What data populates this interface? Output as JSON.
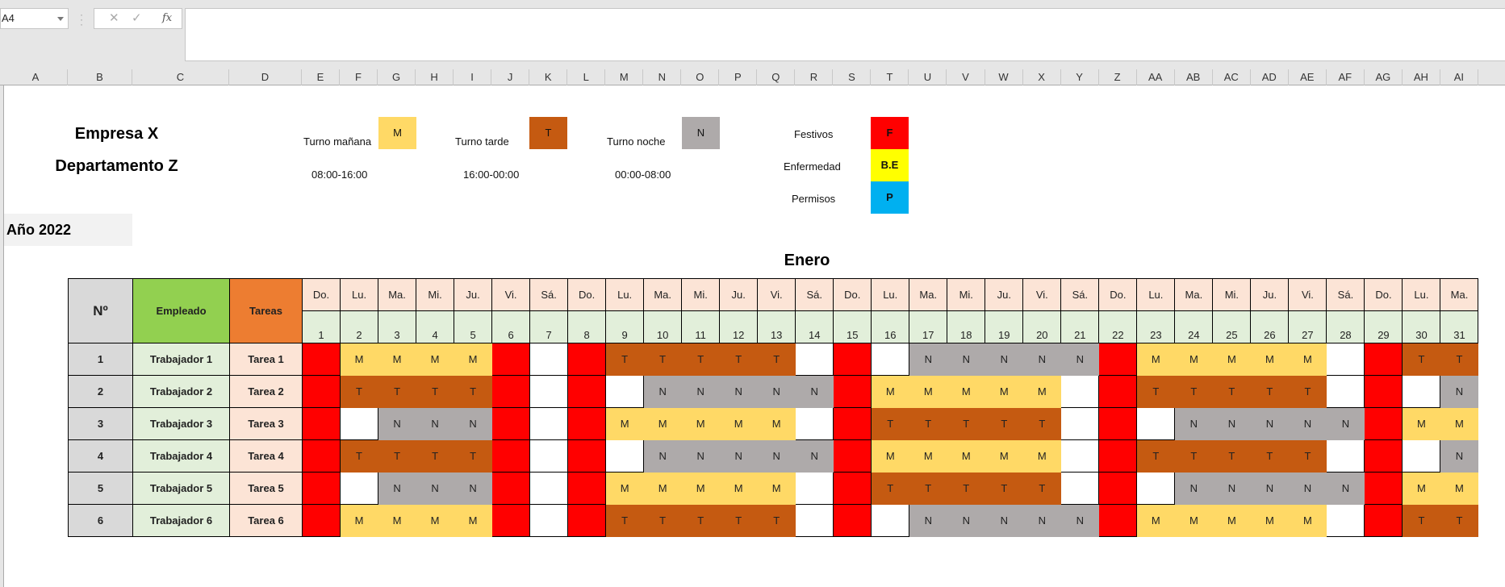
{
  "toolbar": {
    "name_box": "A4",
    "cancel_icon": "✕",
    "enter_icon": "✓",
    "fx_label": "fx",
    "formula_value": ""
  },
  "columns": [
    "A",
    "B",
    "C",
    "D",
    "E",
    "F",
    "G",
    "H",
    "I",
    "J",
    "K",
    "L",
    "M",
    "N",
    "O",
    "P",
    "Q",
    "R",
    "S",
    "T",
    "U",
    "V",
    "W",
    "X",
    "Y",
    "Z",
    "AA",
    "AB",
    "AC",
    "AD",
    "AE",
    "AF",
    "AG",
    "AH",
    "AI"
  ],
  "header": {
    "company": "Empresa X",
    "department": "Departamento Z",
    "year": "Año 2022",
    "month": "Enero"
  },
  "legend": {
    "shifts": [
      {
        "label": "Turno mañana",
        "code": "M",
        "hours": "08:00-16:00",
        "color": "#ffd966"
      },
      {
        "label": "Turno tarde",
        "code": "T",
        "hours": "16:00-00:00",
        "color": "#c55a11"
      },
      {
        "label": "Turno noche",
        "code": "N",
        "hours": "00:00-08:00",
        "color": "#aeaaaa"
      }
    ],
    "absences": [
      {
        "label": "Festivos",
        "code": "F",
        "color": "#ff0000"
      },
      {
        "label": "Enfermedad",
        "code": "B.E",
        "color": "#ffff00"
      },
      {
        "label": "Permisos",
        "code": "P",
        "color": "#00b0f0"
      }
    ]
  },
  "table": {
    "headers": {
      "no": "Nº",
      "employee": "Empleado",
      "task": "Tareas"
    },
    "weekdays": [
      "Do.",
      "Lu.",
      "Ma.",
      "Mi.",
      "Ju.",
      "Vi.",
      "Sá.",
      "Do.",
      "Lu.",
      "Ma.",
      "Mi.",
      "Ju.",
      "Vi.",
      "Sá.",
      "Do.",
      "Lu.",
      "Ma.",
      "Mi.",
      "Ju.",
      "Vi.",
      "Sá.",
      "Do.",
      "Lu.",
      "Ma.",
      "Mi.",
      "Ju.",
      "Vi.",
      "Sá.",
      "Do.",
      "Lu.",
      "Ma."
    ],
    "days": [
      "1",
      "2",
      "3",
      "4",
      "5",
      "6",
      "7",
      "8",
      "9",
      "10",
      "11",
      "12",
      "13",
      "14",
      "15",
      "16",
      "17",
      "18",
      "19",
      "20",
      "21",
      "22",
      "23",
      "24",
      "25",
      "26",
      "27",
      "28",
      "29",
      "30",
      "31"
    ],
    "rows": [
      {
        "no": "1",
        "employee": "Trabajador 1",
        "task": "Tarea 1",
        "shifts": [
          "F",
          "M",
          "M",
          "M",
          "M",
          "F",
          "",
          "F",
          "T",
          "T",
          "T",
          "T",
          "T",
          "",
          "F",
          "",
          "N",
          "N",
          "N",
          "N",
          "N",
          "F",
          "M",
          "M",
          "M",
          "M",
          "M",
          "",
          "F",
          "T",
          "T"
        ]
      },
      {
        "no": "2",
        "employee": "Trabajador 2",
        "task": "Tarea 2",
        "shifts": [
          "F",
          "T",
          "T",
          "T",
          "T",
          "F",
          "",
          "F",
          "",
          "N",
          "N",
          "N",
          "N",
          "N",
          "F",
          "M",
          "M",
          "M",
          "M",
          "M",
          "",
          "F",
          "T",
          "T",
          "T",
          "T",
          "T",
          "",
          "F",
          "",
          "N"
        ]
      },
      {
        "no": "3",
        "employee": "Trabajador 3",
        "task": "Tarea 3",
        "shifts": [
          "F",
          "",
          "N",
          "N",
          "N",
          "F",
          "",
          "F",
          "M",
          "M",
          "M",
          "M",
          "M",
          "",
          "F",
          "T",
          "T",
          "T",
          "T",
          "T",
          "",
          "F",
          "",
          "N",
          "N",
          "N",
          "N",
          "N",
          "F",
          "M",
          "M"
        ]
      },
      {
        "no": "4",
        "employee": "Trabajador 4",
        "task": "Tarea 4",
        "shifts": [
          "F",
          "T",
          "T",
          "T",
          "T",
          "F",
          "",
          "F",
          "",
          "N",
          "N",
          "N",
          "N",
          "N",
          "F",
          "M",
          "M",
          "M",
          "M",
          "M",
          "",
          "F",
          "T",
          "T",
          "T",
          "T",
          "T",
          "",
          "F",
          "",
          "N"
        ]
      },
      {
        "no": "5",
        "employee": "Trabajador 5",
        "task": "Tarea 5",
        "shifts": [
          "F",
          "",
          "N",
          "N",
          "N",
          "F",
          "",
          "F",
          "M",
          "M",
          "M",
          "M",
          "M",
          "",
          "F",
          "T",
          "T",
          "T",
          "T",
          "T",
          "",
          "F",
          "",
          "N",
          "N",
          "N",
          "N",
          "N",
          "F",
          "M",
          "M"
        ]
      },
      {
        "no": "6",
        "employee": "Trabajador 6",
        "task": "Tarea 6",
        "shifts": [
          "F",
          "M",
          "M",
          "M",
          "M",
          "F",
          "",
          "F",
          "T",
          "T",
          "T",
          "T",
          "T",
          "",
          "F",
          "",
          "N",
          "N",
          "N",
          "N",
          "N",
          "F",
          "M",
          "M",
          "M",
          "M",
          "M",
          "",
          "F",
          "T",
          "T"
        ]
      }
    ]
  }
}
